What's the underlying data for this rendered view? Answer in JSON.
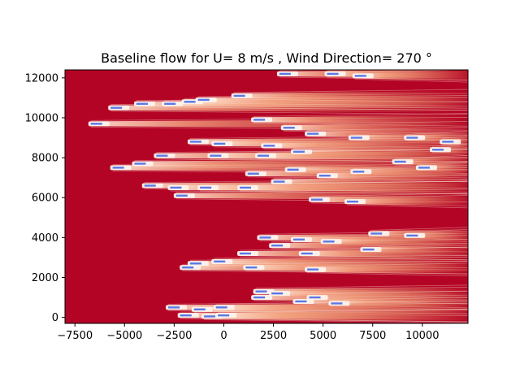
{
  "chart_data": {
    "type": "heatmap",
    "title": "Baseline flow for U= 8 m/s  ,  Wind Direction= 270  °",
    "xlabel": "",
    "ylabel": "",
    "xlim": [
      -8000,
      12300
    ],
    "ylim": [
      -300,
      12400
    ],
    "x_ticks": [
      -7500,
      -5000,
      -2500,
      0,
      2500,
      5000,
      7500,
      10000
    ],
    "x_tick_labels": [
      "−7500",
      "−5000",
      "−2500",
      "0",
      "2500",
      "5000",
      "7500",
      "10000"
    ],
    "y_ticks": [
      0,
      2000,
      4000,
      6000,
      8000,
      10000,
      12000
    ],
    "y_tick_labels": [
      "0",
      "2000",
      "4000",
      "6000",
      "8000",
      "10000",
      "12000"
    ],
    "colormap": "coolwarm",
    "background_color": "#b40426",
    "wake_color": "#f7b89c",
    "turbine_color": "#5a78e6",
    "grid": false,
    "turbines": [
      {
        "x": -6700,
        "y": 9700
      },
      {
        "x": -5700,
        "y": 10500
      },
      {
        "x": -4400,
        "y": 10700
      },
      {
        "x": -3000,
        "y": 10700
      },
      {
        "x": -2000,
        "y": 10800
      },
      {
        "x": -1300,
        "y": 10900
      },
      {
        "x": 500,
        "y": 11100
      },
      {
        "x": 2800,
        "y": 12200
      },
      {
        "x": 5200,
        "y": 12200
      },
      {
        "x": 6600,
        "y": 12100
      },
      {
        "x": 1500,
        "y": 9900
      },
      {
        "x": 3000,
        "y": 9500
      },
      {
        "x": 4200,
        "y": 9200
      },
      {
        "x": 6400,
        "y": 9000
      },
      {
        "x": 9200,
        "y": 9000
      },
      {
        "x": 11000,
        "y": 8800
      },
      {
        "x": -1700,
        "y": 8800
      },
      {
        "x": -500,
        "y": 8700
      },
      {
        "x": 2000,
        "y": 8600
      },
      {
        "x": 3500,
        "y": 8300
      },
      {
        "x": 10500,
        "y": 8400
      },
      {
        "x": -3400,
        "y": 8100
      },
      {
        "x": -700,
        "y": 8100
      },
      {
        "x": 1700,
        "y": 8100
      },
      {
        "x": -5600,
        "y": 7500
      },
      {
        "x": -4500,
        "y": 7700
      },
      {
        "x": 3200,
        "y": 7400
      },
      {
        "x": 8600,
        "y": 7800
      },
      {
        "x": 9800,
        "y": 7500
      },
      {
        "x": 6500,
        "y": 7300
      },
      {
        "x": 1200,
        "y": 7200
      },
      {
        "x": 4800,
        "y": 7100
      },
      {
        "x": 2500,
        "y": 6800
      },
      {
        "x": -4000,
        "y": 6600
      },
      {
        "x": -2700,
        "y": 6500
      },
      {
        "x": -1200,
        "y": 6500
      },
      {
        "x": 800,
        "y": 6500
      },
      {
        "x": -2400,
        "y": 6100
      },
      {
        "x": 4400,
        "y": 5900
      },
      {
        "x": 6200,
        "y": 5800
      },
      {
        "x": 7400,
        "y": 4200
      },
      {
        "x": 9200,
        "y": 4100
      },
      {
        "x": 1800,
        "y": 4000
      },
      {
        "x": 3500,
        "y": 3900
      },
      {
        "x": 5000,
        "y": 3800
      },
      {
        "x": 2400,
        "y": 3600
      },
      {
        "x": 7000,
        "y": 3400
      },
      {
        "x": 800,
        "y": 3200
      },
      {
        "x": 3900,
        "y": 3200
      },
      {
        "x": -1700,
        "y": 2700
      },
      {
        "x": -500,
        "y": 2800
      },
      {
        "x": -2100,
        "y": 2500
      },
      {
        "x": 1100,
        "y": 2500
      },
      {
        "x": 4200,
        "y": 2400
      },
      {
        "x": 1600,
        "y": 1300
      },
      {
        "x": 2400,
        "y": 1200
      },
      {
        "x": 4300,
        "y": 1000
      },
      {
        "x": 1500,
        "y": 1000
      },
      {
        "x": 3600,
        "y": 800
      },
      {
        "x": 5400,
        "y": 700
      },
      {
        "x": -2800,
        "y": 500
      },
      {
        "x": -1500,
        "y": 400
      },
      {
        "x": -400,
        "y": 500
      },
      {
        "x": -2200,
        "y": 100
      },
      {
        "x": -1000,
        "y": 50
      },
      {
        "x": -300,
        "y": 100
      }
    ]
  }
}
